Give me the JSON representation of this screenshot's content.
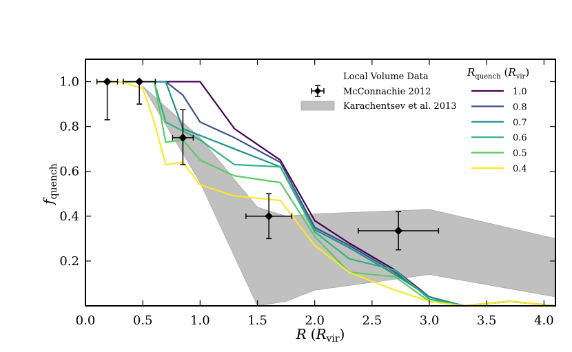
{
  "chart_data": {
    "type": "line",
    "title": "",
    "xlabel": {
      "main": "R",
      "open": "(",
      "sym": "R",
      "sub": "vir",
      "close": ")"
    },
    "ylabel": {
      "main": "f",
      "sub": "quench"
    },
    "xlim": [
      0.0,
      4.1
    ],
    "ylim": [
      0.0,
      1.1
    ],
    "xticks": [
      0.0,
      0.5,
      1.0,
      1.5,
      2.0,
      2.5,
      3.0,
      3.5,
      4.0
    ],
    "xtick_labels": [
      "0.0",
      "0.5",
      "1.0",
      "1.5",
      "2.0",
      "2.5",
      "3.0",
      "3.5",
      "4.0"
    ],
    "yticks": [
      0.2,
      0.4,
      0.6,
      0.8,
      1.0
    ],
    "ytick_labels": [
      "0.2",
      "0.4",
      "0.6",
      "0.8",
      "1.0"
    ],
    "band": {
      "name": "Karachentsev et al. 2013",
      "color": "#c0c0c0",
      "x": [
        0.5,
        1.0,
        1.5,
        1.75,
        2.0,
        3.0,
        4.1
      ],
      "lower": [
        0.98,
        0.55,
        0.0,
        0.02,
        0.07,
        0.14,
        0.04
      ],
      "upper": [
        0.98,
        0.75,
        0.44,
        0.4,
        0.41,
        0.43,
        0.3
      ]
    },
    "data_points": {
      "name": "McConnachie 2012",
      "color": "#000000",
      "points": [
        {
          "x": 0.19,
          "y": 1.0,
          "xerr": 0.09,
          "yerr_low": 0.17,
          "yerr_high": 0.0
        },
        {
          "x": 0.47,
          "y": 1.0,
          "xerr": 0.14,
          "yerr_low": 0.1,
          "yerr_high": 0.0
        },
        {
          "x": 0.85,
          "y": 0.75,
          "xerr": 0.09,
          "yerr_low": 0.12,
          "yerr_high": 0.125
        },
        {
          "x": 1.6,
          "y": 0.4,
          "xerr": 0.2,
          "yerr_low": 0.1,
          "yerr_high": 0.1
        },
        {
          "x": 2.73,
          "y": 0.335,
          "xerr": 0.35,
          "yerr_low": 0.085,
          "yerr_high": 0.085
        }
      ]
    },
    "x": [
      0.1,
      0.3,
      0.5,
      0.6,
      0.7,
      0.85,
      1.0,
      1.3,
      1.7,
      2.0,
      2.3,
      2.7,
      3.0,
      3.3,
      3.7,
      4.1
    ],
    "series": [
      {
        "name": "1.0",
        "color": "#440154",
        "values": [
          1.0,
          1.0,
          1.0,
          1.0,
          1.0,
          1.0,
          1.0,
          0.79,
          0.65,
          0.38,
          0.28,
          0.16,
          0.04,
          0.0,
          0.02,
          0.0
        ]
      },
      {
        "name": "0.8",
        "color": "#3b528b",
        "values": [
          1.0,
          1.0,
          1.0,
          1.0,
          1.0,
          0.94,
          0.82,
          0.75,
          0.64,
          0.35,
          0.27,
          0.15,
          0.04,
          0.0,
          0.02,
          0.0
        ]
      },
      {
        "name": "0.7",
        "color": "#21918c",
        "values": [
          1.0,
          1.0,
          1.0,
          1.0,
          1.0,
          0.79,
          0.76,
          0.7,
          0.62,
          0.34,
          0.26,
          0.14,
          0.04,
          0.0,
          0.02,
          0.0
        ]
      },
      {
        "name": "0.6",
        "color": "#2eb37c",
        "values": [
          1.0,
          1.0,
          1.0,
          1.0,
          0.82,
          0.78,
          0.74,
          0.63,
          0.62,
          0.33,
          0.21,
          0.16,
          0.03,
          0.0,
          0.02,
          0.0
        ]
      },
      {
        "name": "0.5",
        "color": "#5ec962",
        "values": [
          1.0,
          1.0,
          1.0,
          1.0,
          0.73,
          0.74,
          0.65,
          0.58,
          0.55,
          0.31,
          0.15,
          0.13,
          0.02,
          0.0,
          0.02,
          0.0
        ]
      },
      {
        "name": "0.4",
        "color": "#fde725",
        "values": [
          1.0,
          1.0,
          0.97,
          0.82,
          0.63,
          0.64,
          0.54,
          0.49,
          0.47,
          0.27,
          0.15,
          0.07,
          0.02,
          0.0,
          0.02,
          0.0
        ]
      }
    ],
    "legend_left": {
      "heading": "Local Volume Data",
      "points_label": "McConnachie 2012",
      "band_label": "Karachentsev et al. 2013"
    },
    "legend_right": {
      "heading": {
        "main": "R",
        "sub": "quench",
        "open": "(",
        "sym": "R",
        "sub2": "vir",
        "close": ")"
      }
    }
  }
}
